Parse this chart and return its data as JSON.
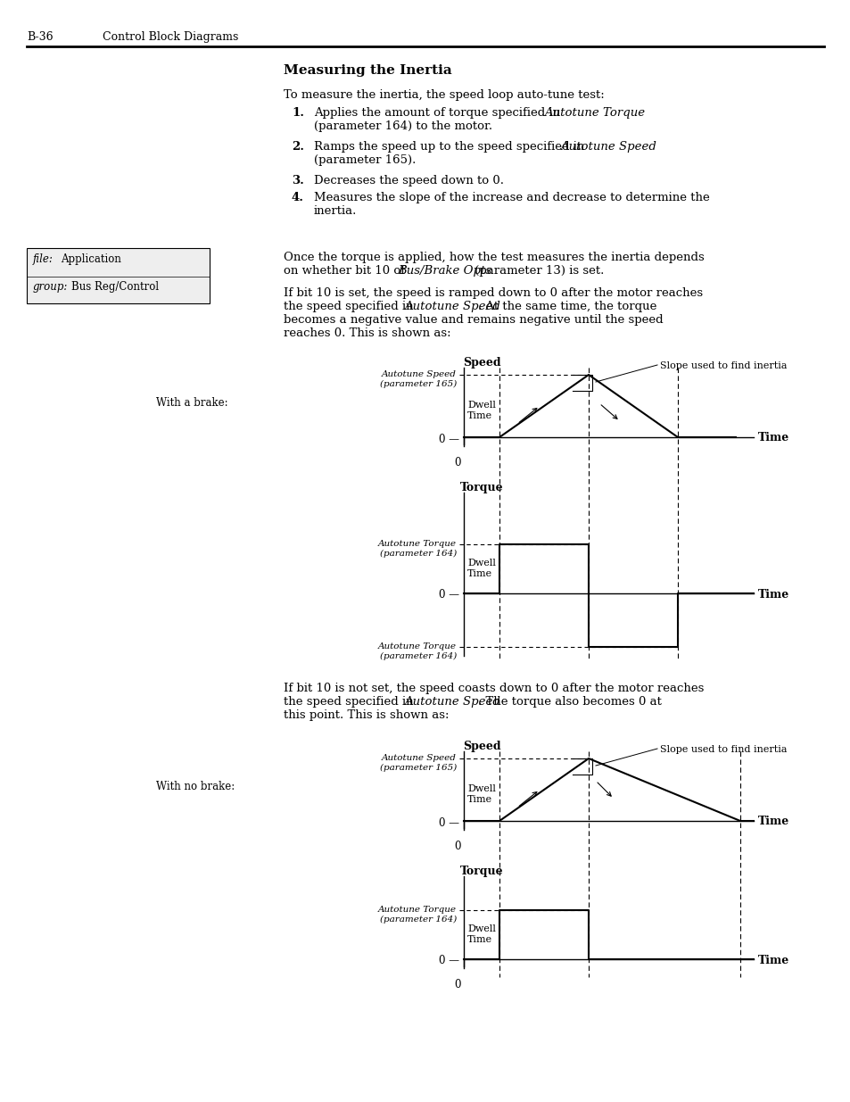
{
  "page_bg": "#ffffff",
  "header_text": "B-36",
  "header_sub": "Control Block Diagrams",
  "title": "Measuring the Inertia",
  "body_intro": "To measure the inertia, the speed loop auto-tune test:",
  "sidebar_file_label": "file:",
  "sidebar_file_val": "Application",
  "sidebar_group_label": "group:",
  "sidebar_group_val": "Bus Reg/Control",
  "with_brake_label": "With a brake:",
  "with_no_brake_label": "With no brake:",
  "speed_label": "Speed",
  "torque_label": "Torque",
  "time_label": "Time",
  "autotune_speed_label": "Autotune Speed\n(parameter 165)",
  "autotune_torque_label": "Autotune Torque\n(parameter 164)",
  "slope_label": "Slope used to find inertia",
  "dwell_label": "Dwell\nTime",
  "zero_label": "0",
  "zero_dash": "0 —"
}
